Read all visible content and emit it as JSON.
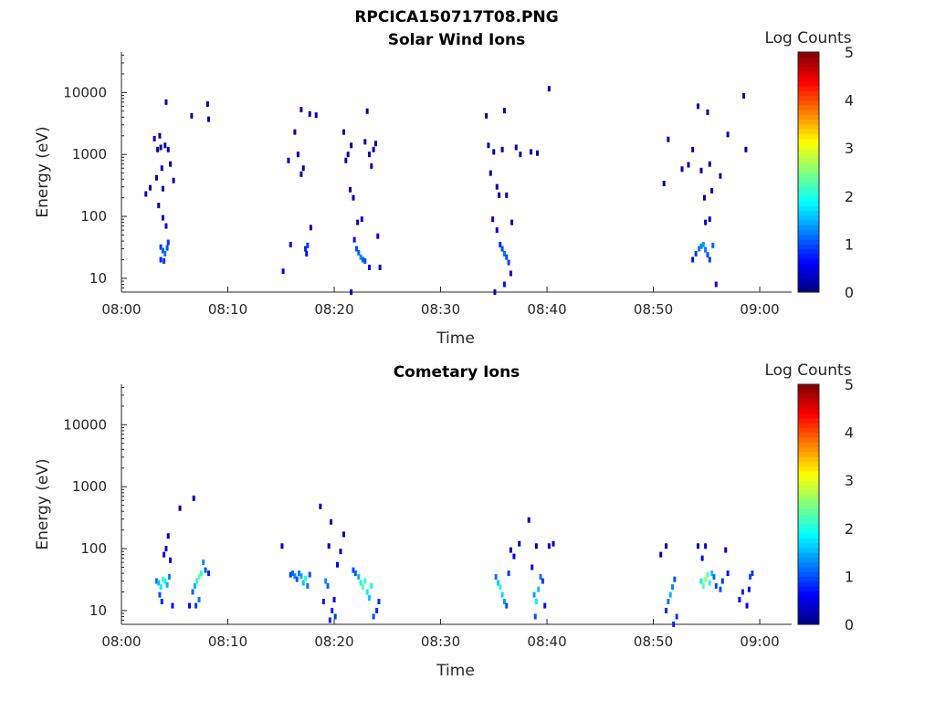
{
  "figure": {
    "title": "RPCICA150717T08.PNG"
  },
  "chart_data": [
    {
      "type": "heatmap",
      "title": "Solar Wind Ions",
      "xlabel": "Time",
      "ylabel": "Energy (eV)",
      "x_ticks": [
        "08:00",
        "08:10",
        "08:20",
        "08:30",
        "08:40",
        "08:50",
        "09:00"
      ],
      "xlim_minutes": [
        0,
        63
      ],
      "y_ticks": [
        "10",
        "100",
        "1000",
        "10000"
      ],
      "y_scale": "log",
      "ylim": [
        6,
        45000
      ],
      "colorbar": {
        "label": "Log Counts",
        "ticks": [
          "0",
          "1",
          "2",
          "3",
          "4",
          "5"
        ],
        "range": [
          0,
          5
        ],
        "colormap": "jet"
      },
      "points": [
        [
          2.3,
          230,
          0.2
        ],
        [
          2.7,
          290,
          0.2
        ],
        [
          3.1,
          1800,
          0.2
        ],
        [
          3.3,
          420,
          0.3
        ],
        [
          3.6,
          2000,
          0.2
        ],
        [
          3.8,
          600,
          0.2
        ],
        [
          3.9,
          280,
          0.2
        ],
        [
          4.2,
          7000,
          0.2
        ],
        [
          4.4,
          1200,
          0.2
        ],
        [
          4.6,
          700,
          0.2
        ],
        [
          4.9,
          380,
          0.2
        ],
        [
          3.4,
          1200,
          0.2
        ],
        [
          3.7,
          1300,
          0.2
        ],
        [
          4.1,
          1400,
          0.2
        ],
        [
          3.5,
          150,
          0.3
        ],
        [
          3.9,
          95,
          0.4
        ],
        [
          4.2,
          70,
          0.5
        ],
        [
          3.7,
          32,
          0.9
        ],
        [
          3.9,
          28,
          1.1
        ],
        [
          4.1,
          25,
          1.2
        ],
        [
          4.3,
          31,
          1.0
        ],
        [
          4.4,
          38,
          0.9
        ],
        [
          3.7,
          20,
          0.8
        ],
        [
          4.0,
          19,
          0.9
        ],
        [
          6.6,
          4200,
          0.2
        ],
        [
          8.1,
          6500,
          0.2
        ],
        [
          8.2,
          3700,
          0.2
        ],
        [
          15.2,
          13,
          0.6
        ],
        [
          15.7,
          800,
          0.2
        ],
        [
          15.9,
          35,
          0.6
        ],
        [
          16.3,
          2300,
          0.2
        ],
        [
          16.6,
          1000,
          0.2
        ],
        [
          16.9,
          5300,
          0.2
        ],
        [
          17.1,
          600,
          0.2
        ],
        [
          17.3,
          30,
          0.8
        ],
        [
          17.5,
          34,
          0.9
        ],
        [
          17.7,
          4500,
          0.2
        ],
        [
          17.8,
          66,
          0.4
        ],
        [
          18.3,
          4300,
          0.2
        ],
        [
          17.4,
          25,
          0.7
        ],
        [
          16.9,
          480,
          0.2
        ],
        [
          20.9,
          2300,
          0.2
        ],
        [
          21.1,
          800,
          0.2
        ],
        [
          21.3,
          1000,
          0.2
        ],
        [
          21.6,
          1400,
          0.2
        ],
        [
          21.5,
          270,
          0.2
        ],
        [
          21.8,
          200,
          0.2
        ],
        [
          21.9,
          42,
          0.7
        ],
        [
          22.1,
          30,
          1.0
        ],
        [
          22.3,
          26,
          1.1
        ],
        [
          22.5,
          22,
          1.3
        ],
        [
          22.7,
          20,
          1.1
        ],
        [
          22.9,
          19,
          1.0
        ],
        [
          22.2,
          80,
          0.4
        ],
        [
          22.6,
          90,
          0.4
        ],
        [
          22.9,
          1600,
          0.2
        ],
        [
          23.1,
          5000,
          0.2
        ],
        [
          23.3,
          1000,
          0.2
        ],
        [
          23.5,
          650,
          0.2
        ],
        [
          23.7,
          1200,
          0.2
        ],
        [
          23.9,
          1500,
          0.2
        ],
        [
          23.3,
          15,
          0.6
        ],
        [
          24.1,
          48,
          0.5
        ],
        [
          24.3,
          15,
          0.5
        ],
        [
          21.6,
          6,
          0.4
        ],
        [
          34.3,
          4200,
          0.2
        ],
        [
          34.5,
          1400,
          0.2
        ],
        [
          34.7,
          500,
          0.2
        ],
        [
          35.0,
          1100,
          0.2
        ],
        [
          35.3,
          300,
          0.2
        ],
        [
          35.5,
          220,
          0.2
        ],
        [
          35.8,
          1200,
          0.2
        ],
        [
          36.0,
          5100,
          0.2
        ],
        [
          36.2,
          220,
          0.2
        ],
        [
          34.9,
          90,
          0.4
        ],
        [
          35.3,
          60,
          0.5
        ],
        [
          35.6,
          35,
          0.8
        ],
        [
          35.8,
          30,
          1.0
        ],
        [
          36.0,
          25,
          1.2
        ],
        [
          36.2,
          22,
          1.0
        ],
        [
          36.4,
          18,
          0.9
        ],
        [
          36.6,
          12,
          0.6
        ],
        [
          36.0,
          8,
          0.7
        ],
        [
          36.7,
          80,
          0.3
        ],
        [
          37.1,
          1300,
          0.2
        ],
        [
          37.5,
          1000,
          0.2
        ],
        [
          38.5,
          1100,
          0.2
        ],
        [
          39.1,
          1050,
          0.2
        ],
        [
          40.2,
          11500,
          0.2
        ],
        [
          35.1,
          6,
          0.3
        ],
        [
          51.0,
          340,
          0.2
        ],
        [
          51.4,
          1750,
          0.2
        ],
        [
          52.7,
          580,
          0.2
        ],
        [
          53.3,
          680,
          0.2
        ],
        [
          53.7,
          1200,
          0.2
        ],
        [
          54.2,
          6000,
          0.2
        ],
        [
          54.5,
          550,
          0.2
        ],
        [
          54.8,
          200,
          0.2
        ],
        [
          55.1,
          4800,
          0.2
        ],
        [
          55.3,
          700,
          0.2
        ],
        [
          55.5,
          260,
          0.2
        ],
        [
          54.9,
          80,
          0.4
        ],
        [
          55.3,
          90,
          0.4
        ],
        [
          53.7,
          20,
          0.7
        ],
        [
          54.0,
          25,
          0.9
        ],
        [
          54.3,
          30,
          1.2
        ],
        [
          54.5,
          33,
          1.3
        ],
        [
          54.7,
          35,
          1.4
        ],
        [
          54.9,
          29,
          1.2
        ],
        [
          55.1,
          24,
          1.0
        ],
        [
          55.3,
          20,
          0.9
        ],
        [
          55.9,
          8,
          0.6
        ],
        [
          56.3,
          450,
          0.2
        ],
        [
          57.0,
          2100,
          0.2
        ],
        [
          58.5,
          8800,
          0.2
        ],
        [
          58.7,
          1200,
          0.2
        ],
        [
          55.6,
          34,
          1.1
        ]
      ]
    },
    {
      "type": "heatmap",
      "title": "Cometary Ions",
      "xlabel": "Time",
      "ylabel": "Energy (eV)",
      "x_ticks": [
        "08:00",
        "08:10",
        "08:20",
        "08:30",
        "08:40",
        "08:50",
        "09:00"
      ],
      "xlim_minutes": [
        0,
        63
      ],
      "y_ticks": [
        "10",
        "100",
        "1000",
        "10000"
      ],
      "y_scale": "log",
      "ylim": [
        6,
        45000
      ],
      "colorbar": {
        "label": "Log Counts",
        "ticks": [
          "0",
          "1",
          "2",
          "3",
          "4",
          "5"
        ],
        "range": [
          0,
          5
        ],
        "colormap": "jet"
      },
      "points": [
        [
          3.3,
          30,
          1.2
        ],
        [
          3.5,
          28,
          1.6
        ],
        [
          3.7,
          24,
          1.8
        ],
        [
          3.9,
          32,
          2.2
        ],
        [
          4.1,
          30,
          1.9
        ],
        [
          4.3,
          26,
          1.5
        ],
        [
          4.5,
          35,
          1.3
        ],
        [
          3.6,
          18,
          1.0
        ],
        [
          3.8,
          14,
          0.8
        ],
        [
          4.0,
          80,
          0.5
        ],
        [
          4.2,
          100,
          0.4
        ],
        [
          4.4,
          160,
          0.3
        ],
        [
          4.6,
          65,
          0.5
        ],
        [
          4.8,
          12,
          0.7
        ],
        [
          5.5,
          450,
          0.2
        ],
        [
          6.4,
          12,
          0.6
        ],
        [
          6.7,
          20,
          1.1
        ],
        [
          6.9,
          25,
          1.5
        ],
        [
          7.1,
          30,
          2.0
        ],
        [
          7.3,
          35,
          2.4
        ],
        [
          7.5,
          40,
          2.1
        ],
        [
          7.7,
          60,
          1.3
        ],
        [
          7.9,
          45,
          1.0
        ],
        [
          7.3,
          15,
          1.2
        ],
        [
          7.0,
          12,
          0.9
        ],
        [
          6.8,
          650,
          0.2
        ],
        [
          8.2,
          40,
          0.8
        ],
        [
          15.1,
          110,
          0.3
        ],
        [
          15.9,
          38,
          0.9
        ],
        [
          16.1,
          40,
          1.1
        ],
        [
          16.3,
          36,
          1.3
        ],
        [
          16.5,
          32,
          1.0
        ],
        [
          16.7,
          40,
          1.2
        ],
        [
          16.9,
          36,
          1.4
        ],
        [
          17.1,
          28,
          1.6
        ],
        [
          17.3,
          33,
          2.0
        ],
        [
          17.5,
          25,
          1.2
        ],
        [
          17.7,
          38,
          1.0
        ],
        [
          18.7,
          480,
          0.2
        ],
        [
          19.0,
          14,
          0.7
        ],
        [
          19.2,
          30,
          1.3
        ],
        [
          19.4,
          25,
          1.1
        ],
        [
          19.5,
          110,
          0.3
        ],
        [
          19.7,
          270,
          0.2
        ],
        [
          19.8,
          10,
          0.8
        ],
        [
          20.1,
          8,
          0.9
        ],
        [
          20.3,
          55,
          0.5
        ],
        [
          20.6,
          90,
          0.3
        ],
        [
          20.9,
          170,
          0.2
        ],
        [
          19.6,
          7,
          0.8
        ],
        [
          20.0,
          15,
          0.6
        ],
        [
          22.3,
          35,
          1.5
        ],
        [
          22.5,
          28,
          2.0
        ],
        [
          22.7,
          24,
          2.3
        ],
        [
          22.9,
          30,
          2.1
        ],
        [
          23.1,
          20,
          1.8
        ],
        [
          23.3,
          16,
          1.6
        ],
        [
          23.5,
          25,
          1.9
        ],
        [
          23.7,
          8,
          1.0
        ],
        [
          21.8,
          45,
          1.0
        ],
        [
          22.0,
          40,
          1.1
        ],
        [
          24.0,
          10,
          0.8
        ],
        [
          24.2,
          14,
          0.8
        ],
        [
          35.2,
          35,
          1.2
        ],
        [
          35.4,
          28,
          1.6
        ],
        [
          35.6,
          24,
          2.0
        ],
        [
          35.8,
          18,
          1.7
        ],
        [
          36.0,
          14,
          1.4
        ],
        [
          36.2,
          12,
          1.0
        ],
        [
          36.4,
          40,
          0.9
        ],
        [
          36.6,
          95,
          0.4
        ],
        [
          36.9,
          75,
          0.4
        ],
        [
          37.4,
          120,
          0.3
        ],
        [
          38.3,
          290,
          0.2
        ],
        [
          38.6,
          50,
          0.6
        ],
        [
          38.8,
          18,
          1.4
        ],
        [
          39.0,
          14,
          1.8
        ],
        [
          39.2,
          22,
          1.6
        ],
        [
          39.4,
          35,
          1.2
        ],
        [
          39.6,
          30,
          0.9
        ],
        [
          39.8,
          12,
          0.7
        ],
        [
          38.9,
          8,
          1.0
        ],
        [
          40.2,
          110,
          0.3
        ],
        [
          40.6,
          120,
          0.3
        ],
        [
          39.0,
          110,
          0.3
        ],
        [
          50.7,
          80,
          0.3
        ],
        [
          51.2,
          10,
          0.8
        ],
        [
          51.4,
          14,
          1.2
        ],
        [
          51.6,
          18,
          1.5
        ],
        [
          51.8,
          24,
          1.3
        ],
        [
          52.0,
          32,
          1.0
        ],
        [
          52.2,
          8,
          0.9
        ],
        [
          51.9,
          6,
          0.8
        ],
        [
          51.2,
          110,
          0.3
        ],
        [
          54.2,
          110,
          0.3
        ],
        [
          54.5,
          30,
          1.8
        ],
        [
          54.7,
          25,
          2.3
        ],
        [
          54.9,
          32,
          2.6
        ],
        [
          55.1,
          38,
          2.3
        ],
        [
          55.3,
          28,
          2.0
        ],
        [
          55.5,
          40,
          1.6
        ],
        [
          55.7,
          35,
          1.2
        ],
        [
          55.9,
          25,
          1.0
        ],
        [
          54.6,
          70,
          0.6
        ],
        [
          54.9,
          110,
          0.4
        ],
        [
          56.3,
          22,
          1.0
        ],
        [
          56.5,
          30,
          0.9
        ],
        [
          56.8,
          95,
          0.3
        ],
        [
          57.0,
          40,
          0.7
        ],
        [
          58.1,
          15,
          0.7
        ],
        [
          58.4,
          20,
          0.8
        ],
        [
          58.8,
          12,
          0.6
        ],
        [
          59.1,
          35,
          1.0
        ],
        [
          59.3,
          40,
          0.9
        ],
        [
          59.0,
          22,
          0.7
        ]
      ]
    }
  ]
}
